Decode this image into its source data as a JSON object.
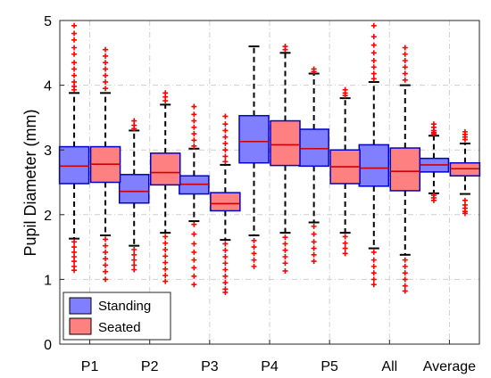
{
  "chart_data": {
    "type": "box",
    "ylabel": "Pupil Diameter (mm)",
    "ylim": [
      0,
      5
    ],
    "yticks": [
      0,
      1,
      2,
      3,
      4,
      5
    ],
    "categories": [
      "P1",
      "P2",
      "P3",
      "P4",
      "P5",
      "All",
      "Average"
    ],
    "grid": true,
    "legend_position": "bottom-left",
    "series": [
      {
        "name": "Standing",
        "color": "#8080ff",
        "median_color": "#cc0000",
        "boxes": [
          {
            "q1": 2.48,
            "median": 2.75,
            "q3": 3.05,
            "whisker_low": 1.63,
            "whisker_high": 3.88,
            "outliers": [
              4.92,
              4.8,
              4.7,
              4.58,
              4.48,
              4.35,
              4.25,
              4.15,
              4.05,
              3.98,
              3.93,
              1.58,
              1.5,
              1.42,
              1.35,
              1.28,
              1.2,
              1.14
            ]
          },
          {
            "q1": 2.18,
            "median": 2.36,
            "q3": 2.62,
            "whisker_low": 1.52,
            "whisker_high": 3.3,
            "outliers": [
              3.45,
              3.38,
              3.33,
              1.46,
              1.38,
              1.3,
              1.22,
              1.15
            ]
          },
          {
            "q1": 2.32,
            "median": 2.47,
            "q3": 2.6,
            "whisker_low": 1.9,
            "whisker_high": 3.02,
            "outliers": [
              3.67,
              3.55,
              3.45,
              3.35,
              3.25,
              3.15,
              3.06,
              1.85,
              1.7,
              1.55,
              1.42,
              1.3,
              1.18,
              1.05,
              0.92
            ]
          },
          {
            "q1": 2.8,
            "median": 3.13,
            "q3": 3.53,
            "whisker_low": 1.68,
            "whisker_high": 4.6,
            "outliers": [
              1.6,
              1.5,
              1.4,
              1.3,
              1.2
            ]
          },
          {
            "q1": 2.75,
            "median": 3.02,
            "q3": 3.32,
            "whisker_low": 1.88,
            "whisker_high": 4.18,
            "outliers": [
              4.25,
              4.21,
              1.82,
              1.7,
              1.58,
              1.48,
              1.38,
              1.28
            ]
          },
          {
            "q1": 2.44,
            "median": 2.72,
            "q3": 3.08,
            "whisker_low": 1.48,
            "whisker_high": 4.05,
            "outliers": [
              4.92,
              4.75,
              4.62,
              4.5,
              4.38,
              4.28,
              4.18,
              4.1,
              1.42,
              1.3,
              1.2,
              1.1,
              1.0,
              0.92
            ]
          },
          {
            "q1": 2.66,
            "median": 2.77,
            "q3": 2.87,
            "whisker_low": 2.33,
            "whisker_high": 3.22,
            "outliers": [
              3.4,
              3.35,
              3.3,
              3.27,
              3.25,
              2.3,
              2.26,
              2.22
            ]
          }
        ]
      },
      {
        "name": "Seated",
        "color": "#ff8080",
        "median_color": "#cc0000",
        "boxes": [
          {
            "q1": 2.5,
            "median": 2.78,
            "q3": 3.05,
            "whisker_low": 1.68,
            "whisker_high": 3.88,
            "outliers": [
              4.55,
              4.45,
              4.35,
              4.25,
              4.15,
              4.05,
              3.95,
              1.62,
              1.52,
              1.42,
              1.32,
              1.22,
              1.12,
              1.0
            ]
          },
          {
            "q1": 2.46,
            "median": 2.65,
            "q3": 2.95,
            "whisker_low": 1.72,
            "whisker_high": 3.7,
            "outliers": [
              3.88,
              3.82,
              3.76,
              1.66,
              1.56,
              1.46,
              1.36,
              1.26,
              1.16,
              1.06,
              0.97
            ]
          },
          {
            "q1": 2.06,
            "median": 2.17,
            "q3": 2.34,
            "whisker_low": 1.61,
            "whisker_high": 2.77,
            "outliers": [
              3.52,
              3.4,
              3.3,
              3.2,
              3.1,
              3.0,
              2.9,
              2.82,
              1.55,
              1.45,
              1.35,
              1.25,
              1.15,
              1.05,
              0.95,
              0.85,
              0.8
            ]
          },
          {
            "q1": 2.76,
            "median": 3.08,
            "q3": 3.45,
            "whisker_low": 1.72,
            "whisker_high": 4.5,
            "outliers": [
              4.6,
              4.55,
              1.65,
              1.55,
              1.45,
              1.35,
              1.25,
              1.13
            ]
          },
          {
            "q1": 2.48,
            "median": 2.74,
            "q3": 3.0,
            "whisker_low": 1.72,
            "whisker_high": 3.8,
            "outliers": [
              3.93,
              3.88,
              3.84,
              1.66,
              1.56,
              1.48,
              1.4
            ]
          },
          {
            "q1": 2.37,
            "median": 2.67,
            "q3": 3.03,
            "whisker_low": 1.38,
            "whisker_high": 4.0,
            "outliers": [
              4.58,
              4.48,
              4.38,
              4.28,
              4.18,
              4.08,
              1.3,
              1.2,
              1.1,
              1.0,
              0.9,
              0.82
            ]
          },
          {
            "q1": 2.6,
            "median": 2.71,
            "q3": 2.8,
            "whisker_low": 2.32,
            "whisker_high": 3.1,
            "outliers": [
              3.28,
              3.24,
              3.2,
              3.16,
              2.22,
              2.15,
              2.1,
              2.05,
              2.02
            ]
          }
        ]
      }
    ]
  }
}
